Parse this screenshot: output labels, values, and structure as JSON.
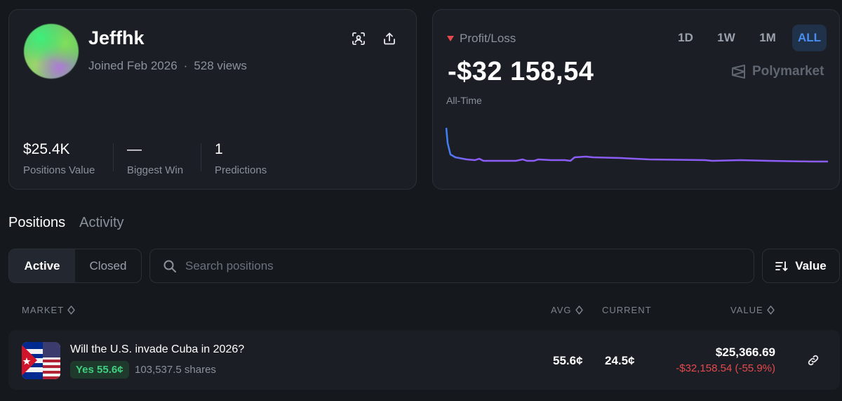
{
  "profile": {
    "username": "Jeffhk",
    "joined": "Joined Feb 2026",
    "separator": "·",
    "views": "528 views",
    "stats": [
      {
        "value": "$25.4K",
        "label": "Positions Value"
      },
      {
        "value": "—",
        "label": "Biggest Win"
      },
      {
        "value": "1",
        "label": "Predictions"
      }
    ]
  },
  "pnl": {
    "label": "Profit/Loss",
    "value": "-$32 158,54",
    "period": "All-Time",
    "ranges": [
      "1D",
      "1W",
      "1M",
      "ALL"
    ],
    "active_range": "ALL",
    "brand": "Polymarket",
    "line_color": "#8b5cf6"
  },
  "tabs": [
    "Positions",
    "Activity"
  ],
  "filter": {
    "active_label": "Active",
    "closed_label": "Closed",
    "search_placeholder": "Search positions",
    "sort_label": "Value"
  },
  "table": {
    "headers": {
      "market": "MARKET",
      "avg": "AVG",
      "current": "CURRENT",
      "value": "VALUE"
    },
    "rows": [
      {
        "title": "Will the U.S. invade Cuba in 2026?",
        "outcome": "Yes 55.6¢",
        "shares": "103,537.5 shares",
        "avg": "55.6¢",
        "current": "24.5¢",
        "value": "$25,366.69",
        "pnl": "-$32,158.54 (-55.9%)"
      }
    ]
  },
  "colors": {
    "accent": "#4a8df0",
    "loss": "#e5484d",
    "gain": "#3fcf7f"
  }
}
